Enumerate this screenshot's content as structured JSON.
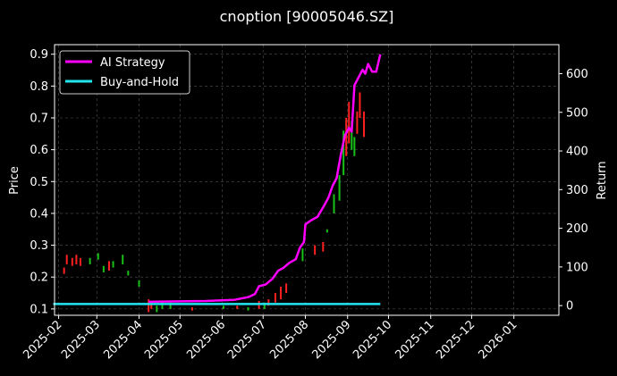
{
  "chart_data": {
    "type": "line",
    "title": "cnoption [90005046.SZ]",
    "xlabel": "",
    "ylabel_left": "Price",
    "ylabel_right": "Return",
    "x_ticks": [
      "2025-02",
      "2025-03",
      "2025-04",
      "2025-05",
      "2025-06",
      "2025-07",
      "2025-08",
      "2025-09",
      "2025-10",
      "2025-11",
      "2025-12",
      "2026-01"
    ],
    "x_range": [
      "2025-01-29",
      "2026-02-03"
    ],
    "price_ticks": [
      "0.1",
      "0.2",
      "0.3",
      "0.4",
      "0.5",
      "0.6",
      "0.7",
      "0.8",
      "0.9"
    ],
    "price_range": [
      0.08,
      0.93
    ],
    "return_ticks": [
      "0",
      "100",
      "200",
      "300",
      "400",
      "500",
      "600"
    ],
    "return_range": [
      -25,
      675
    ],
    "grid": true,
    "legend_position": "top-left",
    "series": [
      {
        "name": "AI Strategy",
        "color": "#ff00ff",
        "points": [
          [
            "2025-04-08",
            10
          ],
          [
            "2025-05-01",
            11
          ],
          [
            "2025-05-20",
            12
          ],
          [
            "2025-06-10",
            15
          ],
          [
            "2025-06-20",
            22
          ],
          [
            "2025-06-25",
            30
          ],
          [
            "2025-06-28",
            50
          ],
          [
            "2025-07-03",
            55
          ],
          [
            "2025-07-08",
            70
          ],
          [
            "2025-07-12",
            90
          ],
          [
            "2025-07-16",
            98
          ],
          [
            "2025-07-20",
            110
          ],
          [
            "2025-07-25",
            120
          ],
          [
            "2025-07-28",
            150
          ],
          [
            "2025-07-31",
            165
          ],
          [
            "2025-08-01",
            210
          ],
          [
            "2025-08-05",
            220
          ],
          [
            "2025-08-10",
            230
          ],
          [
            "2025-08-15",
            260
          ],
          [
            "2025-08-18",
            280
          ],
          [
            "2025-08-21",
            310
          ],
          [
            "2025-08-24",
            330
          ],
          [
            "2025-08-27",
            390
          ],
          [
            "2025-08-30",
            440
          ],
          [
            "2025-09-02",
            460
          ],
          [
            "2025-09-04",
            450
          ],
          [
            "2025-09-06",
            570
          ],
          [
            "2025-09-09",
            590
          ],
          [
            "2025-09-12",
            610
          ],
          [
            "2025-09-14",
            600
          ],
          [
            "2025-09-16",
            625
          ],
          [
            "2025-09-19",
            605
          ],
          [
            "2025-09-22",
            605
          ],
          [
            "2025-09-25",
            650
          ]
        ]
      },
      {
        "name": "Buy-and-Hold",
        "color": "#22e5f0",
        "points": [
          [
            "2025-01-28",
            4
          ],
          [
            "2025-09-25",
            4
          ]
        ]
      }
    ],
    "candles_note": "",
    "candles": [
      {
        "date": "2025-02-05",
        "low": 0.21,
        "high": 0.23,
        "color": "#ff2020"
      },
      {
        "date": "2025-02-07",
        "low": 0.24,
        "high": 0.27,
        "color": "#ff2020"
      },
      {
        "date": "2025-02-11",
        "low": 0.235,
        "high": 0.26,
        "color": "#ff2020"
      },
      {
        "date": "2025-02-14",
        "low": 0.24,
        "high": 0.27,
        "color": "#ff2020"
      },
      {
        "date": "2025-02-17",
        "low": 0.235,
        "high": 0.26,
        "color": "#ff2020"
      },
      {
        "date": "2025-02-24",
        "low": 0.24,
        "high": 0.26,
        "color": "#18c018"
      },
      {
        "date": "2025-03-02",
        "low": 0.255,
        "high": 0.275,
        "color": "#18c018"
      },
      {
        "date": "2025-03-06",
        "low": 0.215,
        "high": 0.235,
        "color": "#18c018"
      },
      {
        "date": "2025-03-10",
        "low": 0.22,
        "high": 0.25,
        "color": "#ff2020"
      },
      {
        "date": "2025-03-13",
        "low": 0.23,
        "high": 0.25,
        "color": "#18c018"
      },
      {
        "date": "2025-03-20",
        "low": 0.24,
        "high": 0.27,
        "color": "#18c018"
      },
      {
        "date": "2025-03-24",
        "low": 0.205,
        "high": 0.22,
        "color": "#18c018"
      },
      {
        "date": "2025-04-01",
        "low": 0.17,
        "high": 0.19,
        "color": "#18c018"
      },
      {
        "date": "2025-04-08",
        "low": 0.09,
        "high": 0.13,
        "color": "#ff2020"
      },
      {
        "date": "2025-04-10",
        "low": 0.1,
        "high": 0.12,
        "color": "#ff2020"
      },
      {
        "date": "2025-04-14",
        "low": 0.09,
        "high": 0.11,
        "color": "#18c018"
      },
      {
        "date": "2025-04-18",
        "low": 0.1,
        "high": 0.12,
        "color": "#18c018"
      },
      {
        "date": "2025-04-24",
        "low": 0.1,
        "high": 0.12,
        "color": "#18c018"
      },
      {
        "date": "2025-05-10",
        "low": 0.095,
        "high": 0.105,
        "color": "#ff2020"
      },
      {
        "date": "2025-06-02",
        "low": 0.1,
        "high": 0.11,
        "color": "#18c018"
      },
      {
        "date": "2025-06-12",
        "low": 0.1,
        "high": 0.11,
        "color": "#ff2020"
      },
      {
        "date": "2025-06-20",
        "low": 0.095,
        "high": 0.105,
        "color": "#18c018"
      },
      {
        "date": "2025-06-28",
        "low": 0.1,
        "high": 0.125,
        "color": "#ff2020"
      },
      {
        "date": "2025-07-02",
        "low": 0.1,
        "high": 0.12,
        "color": "#18c018"
      },
      {
        "date": "2025-07-05",
        "low": 0.11,
        "high": 0.13,
        "color": "#ff2020"
      },
      {
        "date": "2025-07-10",
        "low": 0.12,
        "high": 0.15,
        "color": "#ff2020"
      },
      {
        "date": "2025-07-14",
        "low": 0.13,
        "high": 0.17,
        "color": "#ff2020"
      },
      {
        "date": "2025-07-18",
        "low": 0.15,
        "high": 0.18,
        "color": "#ff2020"
      },
      {
        "date": "2025-07-30",
        "low": 0.25,
        "high": 0.29,
        "color": "#18c018"
      },
      {
        "date": "2025-08-08",
        "low": 0.27,
        "high": 0.3,
        "color": "#ff2020"
      },
      {
        "date": "2025-08-14",
        "low": 0.28,
        "high": 0.31,
        "color": "#ff2020"
      },
      {
        "date": "2025-08-17",
        "low": 0.34,
        "high": 0.35,
        "color": "#18c018"
      },
      {
        "date": "2025-08-22",
        "low": 0.4,
        "high": 0.46,
        "color": "#18c018"
      },
      {
        "date": "2025-08-26",
        "low": 0.44,
        "high": 0.52,
        "color": "#18c018"
      },
      {
        "date": "2025-08-29",
        "low": 0.52,
        "high": 0.66,
        "color": "#18c018"
      },
      {
        "date": "2025-08-31",
        "low": 0.58,
        "high": 0.7,
        "color": "#ff2020"
      },
      {
        "date": "2025-09-02",
        "low": 0.62,
        "high": 0.75,
        "color": "#ff2020"
      },
      {
        "date": "2025-09-04",
        "low": 0.6,
        "high": 0.69,
        "color": "#18c018"
      },
      {
        "date": "2025-09-06",
        "low": 0.58,
        "high": 0.64,
        "color": "#18c018"
      },
      {
        "date": "2025-09-08",
        "low": 0.65,
        "high": 0.72,
        "color": "#ff2020"
      },
      {
        "date": "2025-09-10",
        "low": 0.7,
        "high": 0.78,
        "color": "#ff2020"
      },
      {
        "date": "2025-09-13",
        "low": 0.64,
        "high": 0.72,
        "color": "#ff2020"
      }
    ]
  }
}
